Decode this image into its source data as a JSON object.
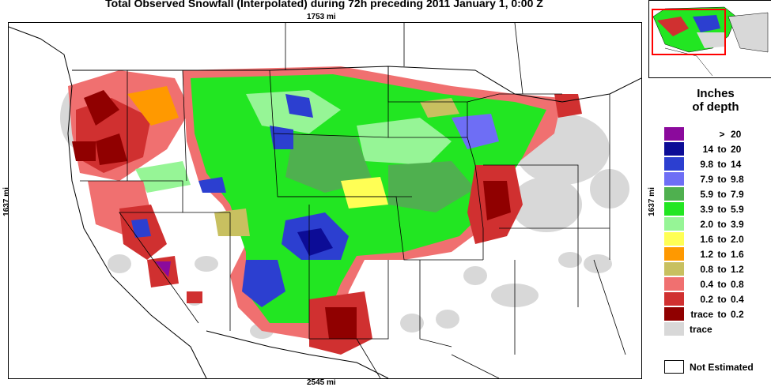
{
  "title": "Total Observed Snowfall (Interpolated) during 72h preceding 2011 January 1, 0:00 Z",
  "scale": {
    "top": "1753 mi",
    "bottom": "2545 mi",
    "left": "1637 mi",
    "right": "1637 mi"
  },
  "legend": {
    "title_line1": "Inches",
    "title_line2": "of depth",
    "items": [
      {
        "lo": "",
        "sep": ">",
        "hi": "20",
        "color": "#8b0a9c"
      },
      {
        "lo": "14",
        "sep": "to",
        "hi": "20",
        "color": "#0c0c96"
      },
      {
        "lo": "9.8",
        "sep": "to",
        "hi": "14",
        "color": "#2c3fd0"
      },
      {
        "lo": "7.9",
        "sep": "to",
        "hi": "9.8",
        "color": "#6e6ef5"
      },
      {
        "lo": "5.9",
        "sep": "to",
        "hi": "7.9",
        "color": "#4fb04f"
      },
      {
        "lo": "3.9",
        "sep": "to",
        "hi": "5.9",
        "color": "#22e622"
      },
      {
        "lo": "2.0",
        "sep": "to",
        "hi": "3.9",
        "color": "#96f596"
      },
      {
        "lo": "1.6",
        "sep": "to",
        "hi": "2.0",
        "color": "#ffff55"
      },
      {
        "lo": "1.2",
        "sep": "to",
        "hi": "1.6",
        "color": "#ff9900"
      },
      {
        "lo": "0.8",
        "sep": "to",
        "hi": "1.2",
        "color": "#c8c060"
      },
      {
        "lo": "0.4",
        "sep": "to",
        "hi": "0.8",
        "color": "#f07070"
      },
      {
        "lo": "0.2",
        "sep": "to",
        "hi": "0.4",
        "color": "#d03030"
      },
      {
        "lo": "trace",
        "sep": "to",
        "hi": "0.2",
        "color": "#900000"
      },
      {
        "lo": "trace",
        "sep": "",
        "hi": "",
        "color": "#d8d8d8"
      }
    ],
    "not_estimated": "Not Estimated"
  },
  "colors": {
    "trace": "#d8d8d8",
    "dark_red": "#900000",
    "red": "#d03030",
    "pink": "#f07070",
    "tan": "#c8c060",
    "orange": "#ff9900",
    "yellow": "#ffff55",
    "lightgreen": "#96f596",
    "green": "#22e622",
    "midgreen": "#4fb04f",
    "lightblue": "#6e6ef5",
    "blue": "#2c3fd0",
    "navy": "#0c0c96",
    "purple": "#8b0a9c",
    "inset_box": "#ff0000"
  }
}
